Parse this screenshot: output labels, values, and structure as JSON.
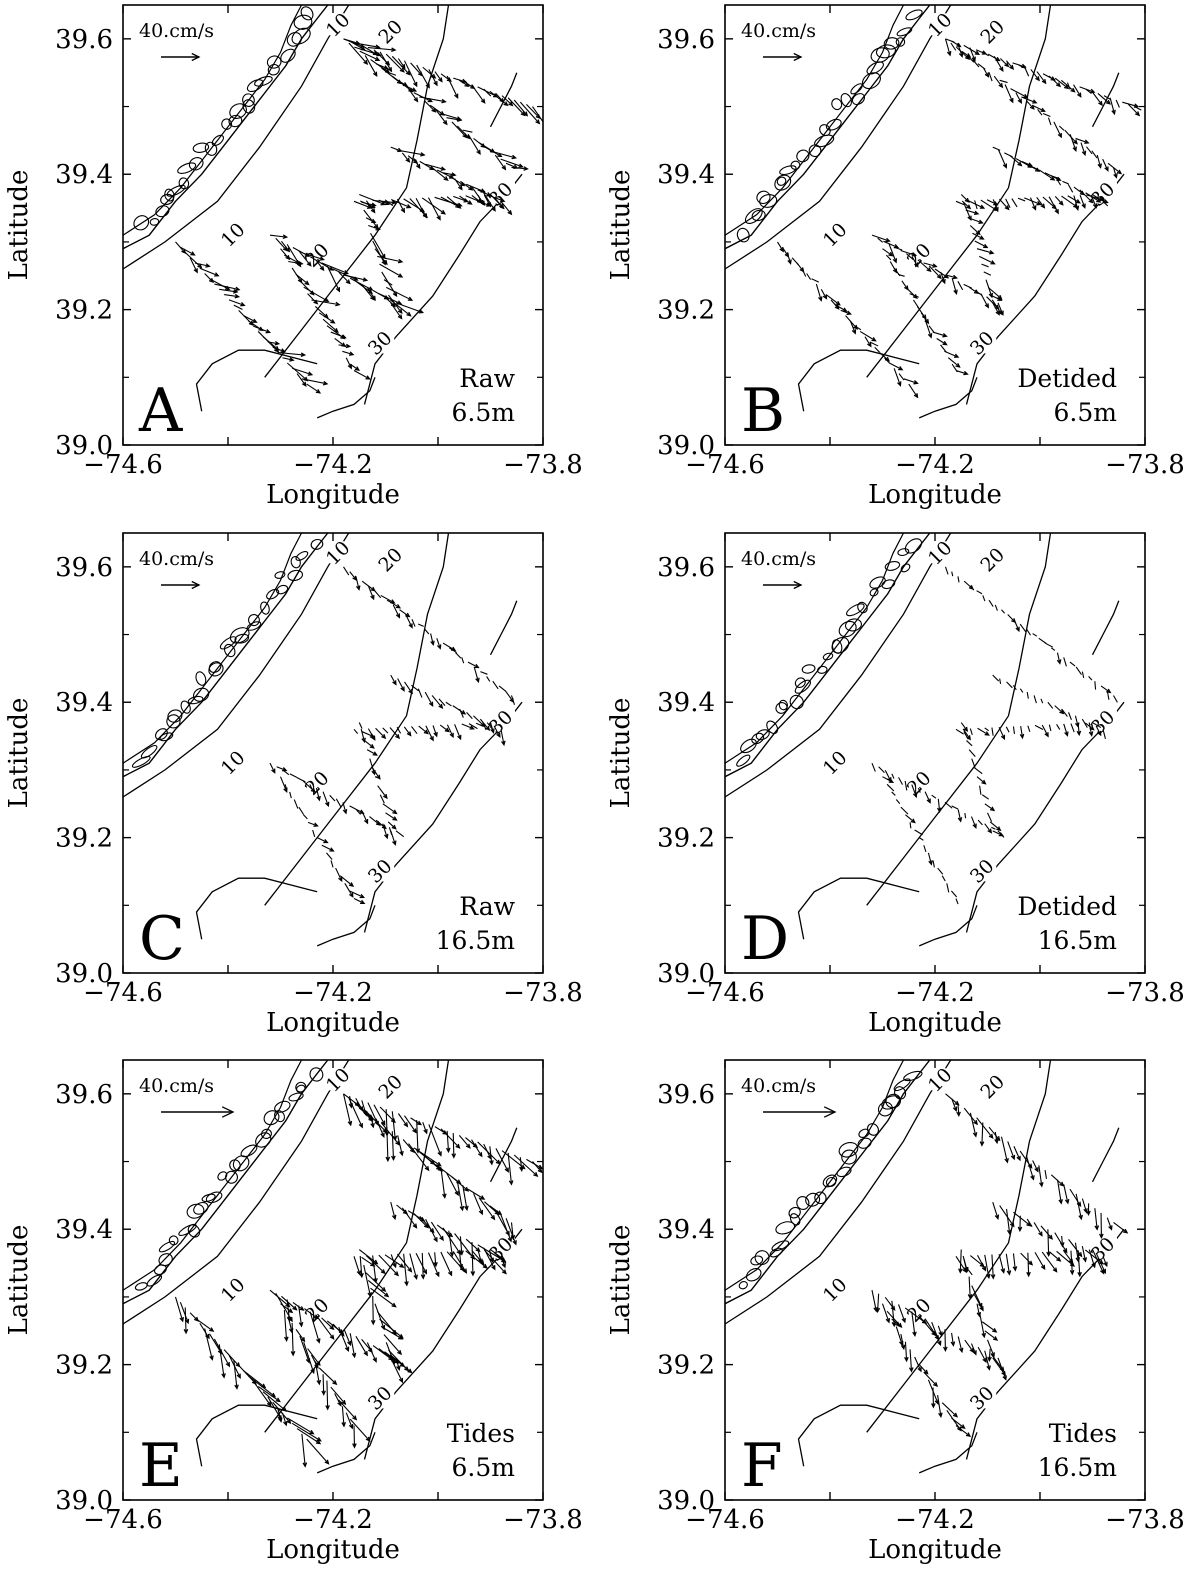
{
  "figure": {
    "panels": [
      {
        "id": "A",
        "caption_line1": "Raw",
        "caption_line2": "6.5m",
        "scale": "40.cm/s",
        "scale_style": "small",
        "vector_style": "raw"
      },
      {
        "id": "B",
        "caption_line1": "Detided",
        "caption_line2": "6.5m",
        "scale": "40.cm/s",
        "scale_style": "small",
        "vector_style": "detided"
      },
      {
        "id": "C",
        "caption_line1": "Raw",
        "caption_line2": "16.5m",
        "scale": "40.cm/s",
        "scale_style": "small",
        "vector_style": "raw_deep"
      },
      {
        "id": "D",
        "caption_line1": "Detided",
        "caption_line2": "16.5m",
        "scale": "40.cm/s",
        "scale_style": "small",
        "vector_style": "detided_deep"
      },
      {
        "id": "E",
        "caption_line1": "Tides",
        "caption_line2": "6.5m",
        "scale": "40.cm/s",
        "scale_style": "large",
        "vector_style": "tides"
      },
      {
        "id": "F",
        "caption_line1": "Tides",
        "caption_line2": "16.5m",
        "scale": "40.cm/s",
        "scale_style": "large",
        "vector_style": "tides_deep"
      }
    ],
    "x_axis": {
      "label": "Longitude",
      "ticks": [
        -74.6,
        -74.2,
        -73.8
      ],
      "tick_labels": [
        "−74.6",
        "−74.2",
        "−73.8"
      ],
      "range": [
        -74.6,
        -73.8
      ]
    },
    "y_axis": {
      "label": "Latitude",
      "ticks": [
        39.0,
        39.2,
        39.4,
        39.6
      ],
      "tick_labels": [
        "39.0",
        "39.2",
        "39.4",
        "39.6"
      ],
      "range": [
        39.0,
        39.65
      ]
    },
    "contours": [
      {
        "label": "10",
        "points": [
          [
            -74.6,
            39.26
          ],
          [
            -74.52,
            39.3
          ],
          [
            -74.42,
            39.36
          ],
          [
            -74.34,
            39.44
          ],
          [
            -74.26,
            39.53
          ],
          [
            -74.21,
            39.6
          ],
          [
            -74.17,
            39.65
          ]
        ]
      },
      {
        "label": "20",
        "points": [
          [
            -74.33,
            39.1
          ],
          [
            -74.26,
            39.17
          ],
          [
            -74.19,
            39.24
          ],
          [
            -74.12,
            39.31
          ],
          [
            -74.06,
            39.38
          ],
          [
            -74.04,
            39.45
          ],
          [
            -74.02,
            39.53
          ],
          [
            -73.99,
            39.6
          ],
          [
            -73.98,
            39.65
          ]
        ]
      },
      {
        "label": "30",
        "points": [
          [
            -74.14,
            39.06
          ],
          [
            -74.12,
            39.12
          ],
          [
            -74.08,
            39.16
          ],
          [
            -74.01,
            39.22
          ],
          [
            -73.96,
            39.28
          ],
          [
            -73.92,
            39.33
          ],
          [
            -73.87,
            39.37
          ],
          [
            -73.84,
            39.4
          ]
        ]
      }
    ],
    "contour_label_positions": {
      "10": [
        [
          -74.19,
          39.62
        ],
        [
          -74.39,
          39.31
        ]
      ],
      "20": [
        [
          -74.09,
          39.61
        ],
        [
          -74.23,
          39.28
        ]
      ],
      "30": [
        [
          -74.11,
          39.15
        ],
        [
          -73.88,
          39.37
        ]
      ]
    },
    "coastline": [
      [
        -74.6,
        39.29
      ],
      [
        -74.55,
        39.31
      ],
      [
        -74.5,
        39.36
      ],
      [
        -74.45,
        39.4
      ],
      [
        -74.41,
        39.44
      ],
      [
        -74.37,
        39.48
      ],
      [
        -74.33,
        39.52
      ],
      [
        -74.29,
        39.56
      ],
      [
        -74.26,
        39.6
      ],
      [
        -74.23,
        39.63
      ],
      [
        -74.21,
        39.65
      ]
    ],
    "bay_outline": [
      [
        -74.6,
        39.31
      ],
      [
        -74.54,
        39.34
      ],
      [
        -74.49,
        39.38
      ],
      [
        -74.45,
        39.42
      ],
      [
        -74.41,
        39.46
      ],
      [
        -74.37,
        39.5
      ],
      [
        -74.33,
        39.54
      ],
      [
        -74.3,
        39.58
      ],
      [
        -74.28,
        39.62
      ],
      [
        -74.26,
        39.65
      ]
    ],
    "cape_outline": [
      [
        -74.45,
        39.05
      ],
      [
        -74.46,
        39.09
      ],
      [
        -74.43,
        39.12
      ],
      [
        -74.38,
        39.14
      ],
      [
        -74.33,
        39.14
      ],
      [
        -74.28,
        39.13
      ],
      [
        -74.23,
        39.12
      ]
    ],
    "south_shore": [
      [
        -74.23,
        39.04
      ],
      [
        -74.2,
        39.05
      ],
      [
        -74.16,
        39.06
      ],
      [
        -74.13,
        39.08
      ],
      [
        -74.12,
        39.1
      ]
    ],
    "east_island": [
      [
        -73.9,
        39.47
      ],
      [
        -73.88,
        39.5
      ],
      [
        -73.86,
        39.53
      ],
      [
        -73.85,
        39.55
      ]
    ],
    "tracks": [
      [
        [
          -74.5,
          39.3
        ],
        [
          -74.25,
          39.09
        ]
      ],
      [
        [
          -74.32,
          39.31
        ],
        [
          -74.08,
          39.21
        ]
      ],
      [
        [
          -74.3,
          39.29
        ],
        [
          -74.16,
          39.11
        ]
      ],
      [
        [
          -74.15,
          39.37
        ],
        [
          -74.09,
          39.21
        ]
      ],
      [
        [
          -74.16,
          39.36
        ],
        [
          -73.9,
          39.37
        ]
      ],
      [
        [
          -74.09,
          39.44
        ],
        [
          -73.88,
          39.36
        ]
      ],
      [
        [
          -74.18,
          39.6
        ],
        [
          -73.82,
          39.5
        ]
      ],
      [
        [
          -74.18,
          39.6
        ],
        [
          -73.86,
          39.41
        ]
      ]
    ]
  }
}
